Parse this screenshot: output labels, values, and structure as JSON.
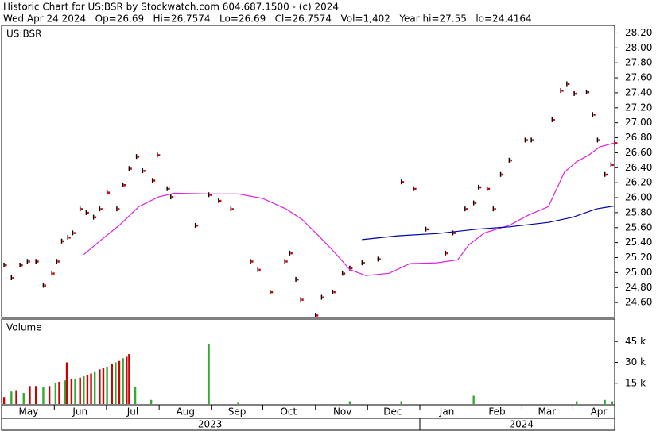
{
  "chart_data": [
    {
      "type": "price",
      "title": "Historic Chart for US:BSR by Stockwatch.com 604.687.1500 - (c) 2024",
      "subtitle": "Wed Apr 24 2024   Op=26.69   Hi=26.7574   Lo=26.69   Cl=26.7574   Vol=1,402   Year hi=27.55   lo=24.4164",
      "legend": "US:BSR",
      "xlim": [
        0,
        250
      ],
      "ylim": [
        24.4,
        28.3
      ],
      "yticks": [
        {
          "value": 24.6,
          "label": "24.60"
        },
        {
          "value": 24.8,
          "label": "24.80"
        },
        {
          "value": 25.0,
          "label": "25.00"
        },
        {
          "value": 25.2,
          "label": "25.20"
        },
        {
          "value": 25.4,
          "label": "25.40"
        },
        {
          "value": 25.6,
          "label": "25.60"
        },
        {
          "value": 25.8,
          "label": "25.80"
        },
        {
          "value": 26.0,
          "label": "26.00"
        },
        {
          "value": 26.2,
          "label": "26.20"
        },
        {
          "value": 26.4,
          "label": "26.40"
        },
        {
          "value": 26.6,
          "label": "26.60"
        },
        {
          "value": 26.8,
          "label": "26.80"
        },
        {
          "value": 27.0,
          "label": "27.00"
        },
        {
          "value": 27.2,
          "label": "27.20"
        },
        {
          "value": 27.4,
          "label": "27.40"
        },
        {
          "value": 27.6,
          "label": "27.60"
        },
        {
          "value": 27.8,
          "label": "27.80"
        },
        {
          "value": 28.0,
          "label": "28.00"
        },
        {
          "value": 28.2,
          "label": "28.20"
        }
      ],
      "series": [
        {
          "name": "US:BSR",
          "color": "#cc0000",
          "x": [
            1,
            4,
            7.5,
            10.5,
            14,
            17,
            20.5,
            22.5,
            24.5,
            27,
            29,
            32,
            34.5,
            37.5,
            40,
            43,
            47,
            49.5,
            52,
            55,
            57.5,
            61.5,
            63.5,
            67.5,
            69,
            79,
            84.5,
            88.5,
            93.5,
            101.5,
            104.5,
            109.5,
            115.5,
            117.5,
            120,
            122,
            128,
            130.5,
            135,
            139,
            142,
            147,
            153.5,
            163,
            168,
            173,
            181,
            184,
            189,
            192.5,
            194.5,
            198,
            200.5,
            203.5,
            207,
            213.5,
            216,
            224.5,
            228,
            230.5,
            233.5,
            238.5,
            241,
            243,
            246,
            248.5,
            250
          ],
          "values": [
            25.1,
            24.93,
            25.1,
            25.15,
            25.15,
            24.83,
            24.99,
            25.15,
            25.42,
            25.47,
            25.53,
            25.85,
            25.8,
            25.74,
            25.85,
            26.07,
            25.85,
            26.17,
            26.39,
            26.55,
            26.36,
            26.23,
            26.57,
            26.12,
            26.01,
            25.63,
            26.04,
            25.96,
            25.85,
            25.15,
            25.04,
            24.74,
            25.15,
            25.26,
            24.91,
            24.64,
            24.43,
            24.67,
            24.74,
            24.99,
            25.06,
            25.13,
            25.18,
            26.21,
            26.12,
            25.58,
            25.26,
            25.53,
            25.85,
            25.93,
            26.14,
            26.12,
            25.85,
            26.31,
            26.5,
            26.77,
            26.77,
            27.04,
            27.43,
            27.52,
            27.39,
            27.41,
            27.11,
            26.77,
            26.31,
            26.44,
            26.73
          ]
        },
        {
          "type": "line",
          "color": "#dd22dd",
          "x": [
            33.5,
            40,
            48,
            56,
            64,
            70.5,
            83.5,
            96.5,
            106.5,
            116,
            122.5,
            129,
            135.5,
            142,
            148.5,
            158,
            166.5,
            177.5,
            186,
            190.5,
            197,
            207,
            215,
            223,
            229.5,
            234.5,
            239.5,
            244,
            250
          ],
          "values": [
            25.24,
            25.42,
            25.63,
            25.88,
            26.01,
            26.06,
            26.05,
            26.05,
            25.99,
            25.85,
            25.71,
            25.5,
            25.28,
            25.04,
            24.96,
            24.99,
            25.12,
            25.13,
            25.17,
            25.37,
            25.53,
            25.63,
            25.77,
            25.88,
            26.34,
            26.48,
            26.57,
            26.68,
            26.73
          ]
        },
        {
          "type": "line",
          "color": "#0000aa",
          "x": [
            147,
            161.5,
            177.5,
            194,
            207,
            223,
            233,
            242.5,
            250
          ],
          "values": [
            25.44,
            25.49,
            25.52,
            25.58,
            25.61,
            25.67,
            25.74,
            25.85,
            25.89
          ]
        }
      ]
    },
    {
      "type": "volume",
      "label": "Volume",
      "xlim": [
        0,
        250
      ],
      "ylim": [
        0,
        60000
      ],
      "yticks": [
        {
          "value": 15000,
          "label": "15 k"
        },
        {
          "value": 30000,
          "label": "30 k"
        },
        {
          "value": 45000,
          "label": "45 k"
        }
      ],
      "x": [
        1,
        4,
        6,
        9,
        11.5,
        14,
        17,
        19.5,
        22,
        23.5,
        26,
        26.6,
        28.5,
        30,
        32,
        33.5,
        35,
        36.5,
        38,
        40,
        41.5,
        43,
        45,
        46.5,
        48,
        49.5,
        51,
        52,
        54.5,
        61,
        84.5,
        96.5,
        142,
        163,
        192.5,
        234.5,
        246,
        249
      ],
      "values": [
        5000,
        9000,
        10000,
        8000,
        13000,
        13000,
        12000,
        13000,
        15000,
        16000,
        17000,
        30000,
        18000,
        18000,
        19000,
        20000,
        21000,
        22000,
        23000,
        25000,
        26000,
        27000,
        29000,
        30000,
        31000,
        33000,
        34000,
        36000,
        12000,
        3000,
        43000,
        1000,
        2000,
        2000,
        6000,
        2000,
        3000,
        2000
      ],
      "colors": [
        "#cc0000",
        "#33aa33",
        "#cc0000",
        "#33aa33",
        "#cc0000",
        "#cc0000",
        "#33aa33",
        "#cc0000",
        "#33aa33",
        "#cc0000",
        "#33aa33",
        "#cc0000",
        "#cc0000",
        "#33aa33",
        "#cc0000",
        "#33aa33",
        "#cc0000",
        "#cc0000",
        "#33aa33",
        "#cc0000",
        "#cc0000",
        "#33aa33",
        "#cc0000",
        "#33aa33",
        "#cc0000",
        "#33aa33",
        "#cc0000",
        "#cc0000",
        "#33aa33",
        "#33aa33",
        "#33aa33",
        "#33aa33",
        "#33aa33",
        "#33aa33",
        "#33aa33",
        "#33aa33",
        "#33aa33",
        "#33aa33"
      ],
      "xticks": [
        {
          "value": 11,
          "label": "May"
        },
        {
          "value": 32,
          "label": "Jun"
        },
        {
          "value": 53.5,
          "label": "Jul"
        },
        {
          "value": 75,
          "label": "Aug"
        },
        {
          "value": 96,
          "label": "Sep"
        },
        {
          "value": 117,
          "label": "Oct"
        },
        {
          "value": 139,
          "label": "Nov"
        },
        {
          "value": 159.5,
          "label": "Dec"
        },
        {
          "value": 181.6,
          "label": "Jan"
        },
        {
          "value": 202,
          "label": "Feb"
        },
        {
          "value": 222.4,
          "label": "Mar"
        },
        {
          "value": 243.5,
          "label": "Apr"
        }
      ],
      "years": [
        {
          "value": 85,
          "label": "2023"
        },
        {
          "value": 212,
          "label": "2024"
        }
      ]
    }
  ]
}
